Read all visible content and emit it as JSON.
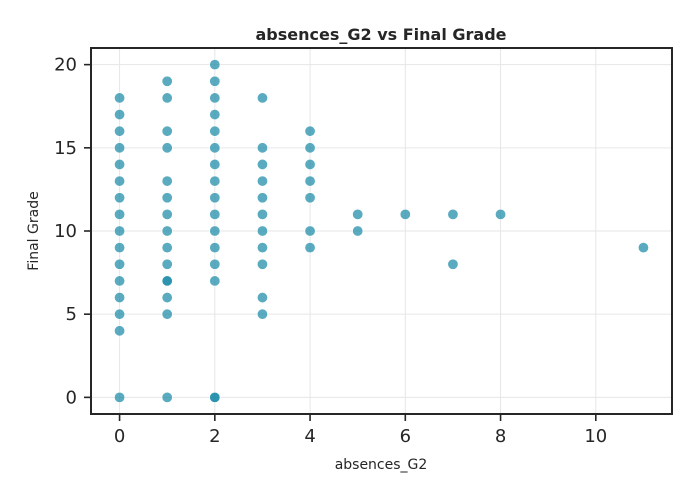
{
  "chart_data": {
    "type": "scatter",
    "title": "absences_G2 vs Final Grade",
    "xlabel": "absences_G2",
    "ylabel": "Final Grade",
    "xlim": [
      -0.6,
      11.6
    ],
    "ylim": [
      -1,
      21
    ],
    "xticks": [
      0,
      2,
      4,
      6,
      8,
      10
    ],
    "yticks": [
      0,
      5,
      10,
      15,
      20
    ],
    "grid": true,
    "colors": {
      "marker": "#1a8aa8"
    },
    "x": [
      0,
      0,
      0,
      0,
      0,
      0,
      0,
      0,
      0,
      0,
      0,
      0,
      0,
      0,
      0,
      0,
      1,
      1,
      1,
      1,
      1,
      1,
      1,
      1,
      1,
      1,
      1,
      1,
      1,
      1,
      1,
      2,
      2,
      2,
      2,
      2,
      2,
      2,
      2,
      2,
      2,
      2,
      2,
      2,
      2,
      2,
      2,
      3,
      3,
      3,
      3,
      3,
      3,
      3,
      3,
      3,
      3,
      3,
      4,
      4,
      4,
      4,
      4,
      4,
      4,
      5,
      5,
      6,
      7,
      7,
      8,
      11
    ],
    "y": [
      0,
      4,
      5,
      6,
      7,
      8,
      9,
      10,
      11,
      12,
      13,
      14,
      15,
      16,
      17,
      18,
      0,
      5,
      6,
      7,
      8,
      9,
      10,
      11,
      12,
      13,
      15,
      16,
      18,
      19,
      7,
      0,
      7,
      8,
      9,
      10,
      11,
      12,
      13,
      14,
      15,
      16,
      17,
      18,
      19,
      20,
      0,
      5,
      6,
      8,
      9,
      10,
      11,
      12,
      13,
      14,
      15,
      18,
      9,
      10,
      12,
      13,
      14,
      15,
      16,
      10,
      11,
      11,
      8,
      11,
      11,
      9
    ]
  }
}
